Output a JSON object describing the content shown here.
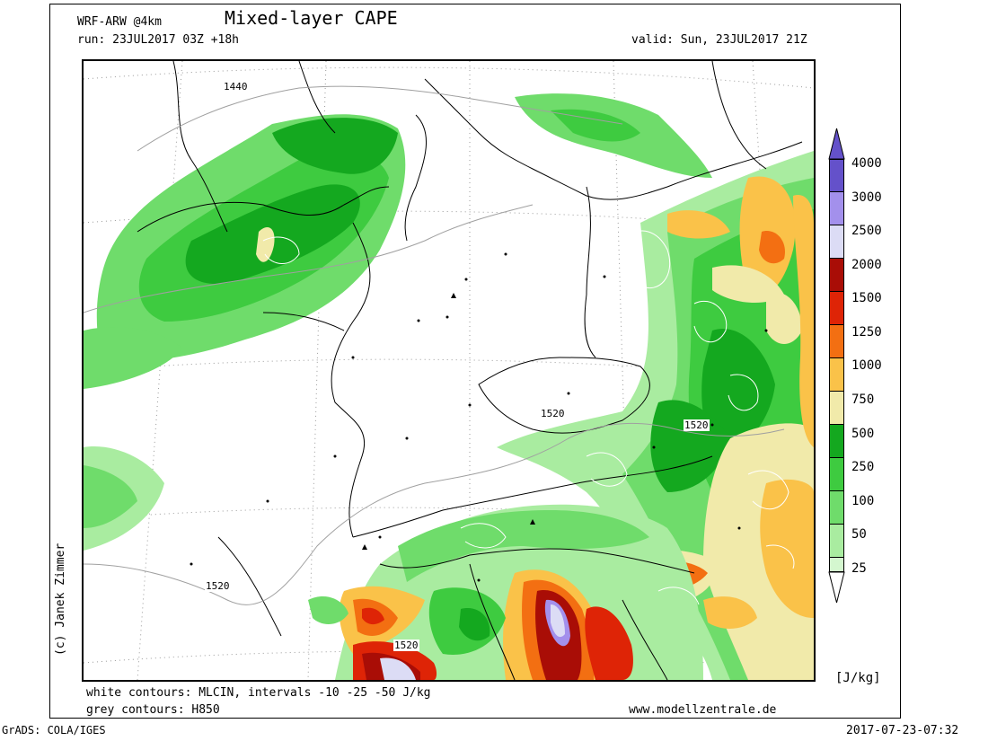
{
  "header": {
    "model": "WRF-ARW @4km",
    "title": "Mixed-layer CAPE",
    "run": "run: 23JUL2017 03Z +18h",
    "valid": "valid: Sun, 23JUL2017 21Z"
  },
  "map": {
    "contour_labels": [
      {
        "text": "1440"
      },
      {
        "text": "1520"
      },
      {
        "text": "1520"
      },
      {
        "text": "1520"
      },
      {
        "text": "1520"
      }
    ],
    "colors": {
      "cape_25": "#d4f7cf",
      "cape_50": "#a9eca0",
      "cape_100": "#6fdc6b",
      "cape_250": "#3ecb40",
      "cape_500": "#14a81f",
      "cape_750": "#f1eaaa",
      "cape_1000": "#fac249",
      "cape_1250": "#f36f12",
      "cape_1500": "#de2406",
      "cape_2000": "#a90d06",
      "cape_2500": "#dcdcf5",
      "cape_3000": "#a390ec",
      "cape_4000": "#6451ca"
    }
  },
  "legend": {
    "levels": [
      "25",
      "50",
      "100",
      "250",
      "500",
      "750",
      "1000",
      "1250",
      "1500",
      "2000",
      "2500",
      "3000",
      "4000"
    ],
    "unit": "[J/kg]"
  },
  "footer": {
    "white_contours": "white contours: MLCIN, intervals -10 -25 -50 J/kg",
    "grey_contours": "grey contours: H850",
    "website": "www.modellzentrale.de",
    "grads": "GrADS: COLA/IGES",
    "timestamp": "2017-07-23-07:32"
  },
  "credit": "(c) Janek Zimmer"
}
